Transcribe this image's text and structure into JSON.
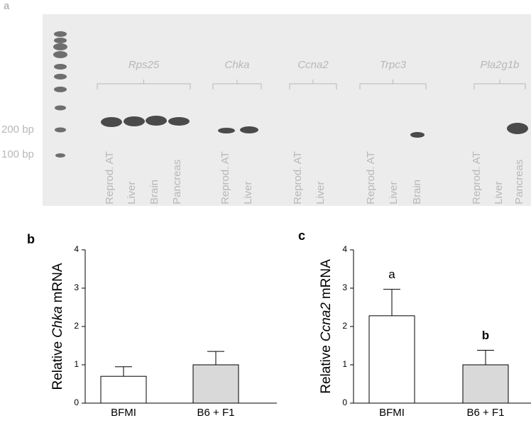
{
  "gel": {
    "panel": "a",
    "markers": [
      "200 bp",
      "100 bp"
    ],
    "genes": [
      {
        "name": "Rps25",
        "lanes": [
          "Reprod. AT",
          "Liver",
          "Brain",
          "Pancreas"
        ]
      },
      {
        "name": "Chka",
        "lanes": [
          "Reprod. AT",
          "Liver"
        ]
      },
      {
        "name": "Ccna2",
        "lanes": [
          "Reprod. AT",
          "Liver"
        ]
      },
      {
        "name": "Trpc3",
        "lanes": [
          "Reprod. AT",
          "Liver",
          "Brain"
        ]
      },
      {
        "name": "Pla2g1b",
        "lanes": [
          "Reprod. AT",
          "Liver",
          "Pancreas"
        ]
      }
    ]
  },
  "chart_data": [
    {
      "type": "bar",
      "panel": "b",
      "ylabel": [
        "Relative",
        "Chka",
        "mRNA"
      ],
      "categories": [
        "BFMI",
        "B6 + F1"
      ],
      "values": [
        0.7,
        1.0
      ],
      "errors": [
        0.25,
        0.35
      ],
      "colors": [
        "#ffffff",
        "#d9d9d9"
      ],
      "ylim": [
        0,
        4
      ],
      "yticks": [
        0,
        1,
        2,
        3,
        4
      ]
    },
    {
      "type": "bar",
      "panel": "c",
      "ylabel": [
        "Relative",
        "Ccna2",
        "mRNA"
      ],
      "categories": [
        "BFMI",
        "B6 + F1"
      ],
      "values": [
        2.28,
        1.0
      ],
      "errors": [
        0.69,
        0.38
      ],
      "colors": [
        "#ffffff",
        "#d9d9d9"
      ],
      "ylim": [
        0,
        4
      ],
      "yticks": [
        0,
        1,
        2,
        3,
        4
      ],
      "annotations": [
        {
          "text": "a",
          "category": 0,
          "bold": false
        },
        {
          "text": "b",
          "category": 1,
          "bold": true
        }
      ]
    }
  ]
}
